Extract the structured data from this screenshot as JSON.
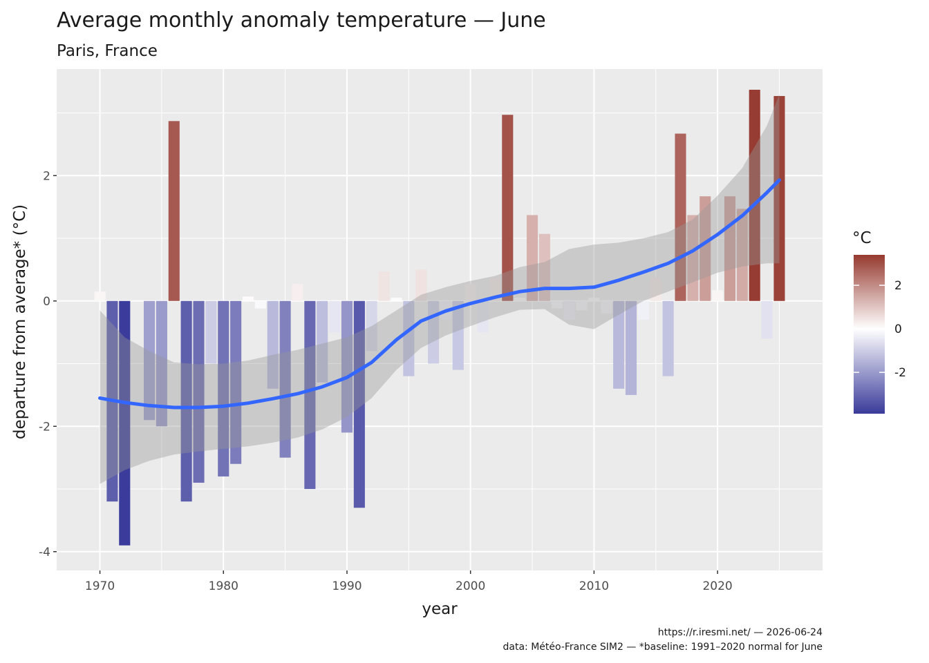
{
  "chart_data": {
    "type": "bar",
    "title": "Average monthly anomaly temperature — June",
    "subtitle": "Paris, France",
    "xlabel": "year",
    "ylabel": "departure from average* (°C)",
    "xlim": [
      1966.5,
      2028.5
    ],
    "ylim": [
      -4.3,
      3.7
    ],
    "x_ticks": [
      1970,
      1980,
      1990,
      2000,
      2010,
      2020
    ],
    "y_ticks": [
      -4,
      -2,
      0,
      2
    ],
    "legend": {
      "title": "°C",
      "ticks": [
        2,
        0,
        -2
      ],
      "range": [
        -3.9,
        3.4
      ],
      "position": "right"
    },
    "colors": {
      "low": "#3a3b9a",
      "mid": "#ffffff",
      "high": "#963a30",
      "smooth_line": "#3366ff",
      "panel": "#ebebeb",
      "ribbon": "#999999"
    },
    "caption": [
      "https://r.iresmi.net/ — 2026-06-24",
      "data: Météo-France SIM2 — *baseline: 1991–2020 normal for June"
    ],
    "years": [
      1970,
      1971,
      1972,
      1973,
      1974,
      1975,
      1976,
      1977,
      1978,
      1979,
      1980,
      1981,
      1982,
      1983,
      1984,
      1985,
      1986,
      1987,
      1988,
      1989,
      1990,
      1991,
      1992,
      1993,
      1994,
      1995,
      1996,
      1997,
      1998,
      1999,
      2000,
      2001,
      2002,
      2003,
      2004,
      2005,
      2006,
      2007,
      2008,
      2009,
      2010,
      2011,
      2012,
      2013,
      2014,
      2015,
      2016,
      2017,
      2018,
      2019,
      2020,
      2021,
      2022,
      2023,
      2024,
      2025
    ],
    "values": [
      0.15,
      -3.2,
      -3.9,
      0.0,
      -1.9,
      -2.0,
      2.87,
      -3.2,
      -2.9,
      -1.0,
      -2.8,
      -2.6,
      0.07,
      -0.12,
      -1.4,
      -2.5,
      0.27,
      -3.0,
      -1.3,
      -0.5,
      -2.1,
      -3.3,
      -0.8,
      0.47,
      0.05,
      -1.2,
      0.5,
      -1.0,
      -0.3,
      -1.1,
      0.27,
      -0.5,
      0.37,
      2.97,
      0.05,
      1.37,
      1.07,
      -0.12,
      -0.3,
      -0.15,
      0.05,
      -0.2,
      -1.4,
      -1.5,
      -0.3,
      0.37,
      -1.2,
      2.67,
      1.37,
      1.67,
      0.17,
      1.67,
      1.47,
      3.37,
      -0.6,
      3.27
    ],
    "smooth": {
      "x": [
        1970,
        1972,
        1974,
        1976,
        1978,
        1980,
        1982,
        1984,
        1986,
        1988,
        1990,
        1992,
        1994,
        1996,
        1998,
        2000,
        2002,
        2004,
        2006,
        2008,
        2010,
        2012,
        2014,
        2016,
        2018,
        2020,
        2022,
        2024,
        2025
      ],
      "y": [
        -1.55,
        -1.62,
        -1.67,
        -1.7,
        -1.7,
        -1.68,
        -1.63,
        -1.56,
        -1.48,
        -1.37,
        -1.22,
        -0.98,
        -0.62,
        -0.32,
        -0.16,
        -0.04,
        0.06,
        0.15,
        0.2,
        0.2,
        0.22,
        0.33,
        0.46,
        0.6,
        0.8,
        1.06,
        1.36,
        1.73,
        1.93
      ],
      "lower": [
        -2.92,
        -2.7,
        -2.55,
        -2.45,
        -2.4,
        -2.36,
        -2.32,
        -2.26,
        -2.18,
        -2.05,
        -1.85,
        -1.55,
        -1.1,
        -0.75,
        -0.55,
        -0.4,
        -0.26,
        -0.14,
        -0.13,
        -0.38,
        -0.45,
        -0.22,
        0.0,
        0.15,
        0.3,
        0.45,
        0.55,
        0.6,
        0.6
      ],
      "upper": [
        -0.15,
        -0.58,
        -0.8,
        -0.98,
        -1.01,
        -1.0,
        -0.95,
        -0.86,
        -0.78,
        -0.68,
        -0.58,
        -0.4,
        -0.15,
        0.1,
        0.22,
        0.32,
        0.4,
        0.54,
        0.62,
        0.83,
        0.9,
        0.93,
        1.0,
        1.1,
        1.3,
        1.68,
        2.12,
        2.8,
        3.3
      ]
    }
  }
}
